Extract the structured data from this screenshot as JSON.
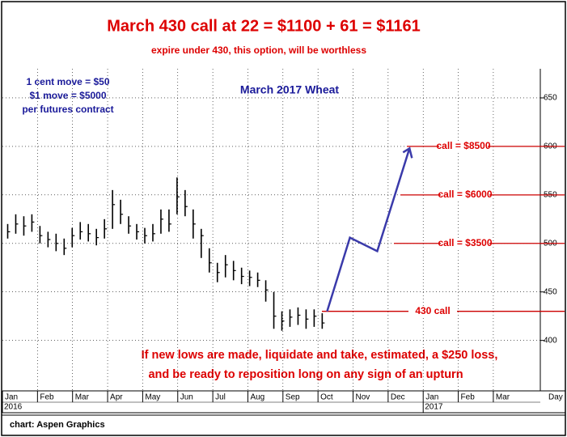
{
  "chart_data": {
    "type": "ohlc",
    "title": "March 430 call at 22 = $1100 + 61 = $1161",
    "subtitle": "expire under 430, this option, will be worthless",
    "notes": [
      "1 cent move = $50",
      "$1 move = $5000",
      "per futures contract"
    ],
    "chart_label": "March 2017 Wheat",
    "bottom_text": [
      "If new lows are made, liquidate and take, estimated, a $250 loss,",
      "and be ready to reposition long on any sign of an upturn"
    ],
    "source": "chart: Aspen Graphics",
    "xlabel": "Day",
    "xlim": [
      0,
      15.34
    ],
    "xticks": [
      {
        "value": 0,
        "label": "Jan"
      },
      {
        "value": 1,
        "label": "Feb"
      },
      {
        "value": 2,
        "label": "Mar"
      },
      {
        "value": 3,
        "label": "Apr"
      },
      {
        "value": 4,
        "label": "May"
      },
      {
        "value": 5,
        "label": "Jun"
      },
      {
        "value": 6,
        "label": "Jul"
      },
      {
        "value": 7,
        "label": "Aug"
      },
      {
        "value": 8,
        "label": "Sep"
      },
      {
        "value": 9,
        "label": "Oct"
      },
      {
        "value": 10,
        "label": "Nov"
      },
      {
        "value": 11,
        "label": "Dec"
      },
      {
        "value": 12,
        "label": "Jan"
      },
      {
        "value": 13,
        "label": "Feb"
      },
      {
        "value": 14,
        "label": "Mar"
      }
    ],
    "year_labels": [
      {
        "value": 0,
        "label": "2016"
      },
      {
        "value": 12,
        "label": "2017"
      }
    ],
    "ylim": [
      348,
      680
    ],
    "yticks": [
      400,
      450,
      500,
      550,
      600,
      650
    ],
    "grid": true,
    "series": [
      {
        "color": "#000000",
        "x": [
          0.15,
          0.38,
          0.61,
          0.84,
          1.07,
          1.3,
          1.53,
          1.76,
          1.99,
          2.22,
          2.45,
          2.68,
          2.91,
          3.14,
          3.37,
          3.6,
          3.83,
          4.06,
          4.29,
          4.52,
          4.75,
          4.98,
          5.21,
          5.44,
          5.67,
          5.9,
          6.13,
          6.36,
          6.59,
          6.82,
          7.05,
          7.28,
          7.51,
          7.74,
          7.97,
          8.2,
          8.43,
          8.66,
          8.89,
          9.12
        ],
        "high": [
          520,
          530,
          528,
          530,
          518,
          512,
          510,
          505,
          516,
          522,
          520,
          515,
          525,
          555,
          545,
          528,
          520,
          516,
          520,
          535,
          535,
          568,
          555,
          535,
          515,
          495,
          480,
          488,
          482,
          475,
          472,
          470,
          462,
          450,
          430,
          432,
          434,
          432,
          432,
          428
        ],
        "low": [
          505,
          510,
          508,
          512,
          500,
          496,
          492,
          488,
          496,
          504,
          502,
          498,
          505,
          515,
          520,
          510,
          504,
          500,
          502,
          510,
          512,
          530,
          528,
          505,
          485,
          470,
          460,
          465,
          462,
          458,
          456,
          455,
          440,
          412,
          410,
          414,
          416,
          412,
          414,
          412
        ],
        "close": [
          512,
          520,
          518,
          522,
          508,
          504,
          500,
          495,
          508,
          512,
          510,
          506,
          515,
          540,
          530,
          518,
          512,
          508,
          510,
          525,
          520,
          548,
          538,
          520,
          508,
          480,
          470,
          478,
          472,
          466,
          465,
          462,
          452,
          425,
          420,
          424,
          426,
          422,
          425,
          418
        ]
      }
    ],
    "projection": {
      "color": "#3a3aaa",
      "x": [
        9.26,
        9.91,
        10.69,
        11.61
      ],
      "values": [
        430,
        506,
        492,
        598
      ]
    },
    "levels": [
      {
        "value": 430,
        "label": "430 call",
        "color": "#cc0000"
      },
      {
        "value": 500,
        "label": "call = $3500",
        "color": "#cc0000"
      },
      {
        "value": 550,
        "label": "call = $6000",
        "color": "#cc0000"
      },
      {
        "value": 600,
        "label": "call = $8500",
        "color": "#cc0000"
      }
    ]
  }
}
